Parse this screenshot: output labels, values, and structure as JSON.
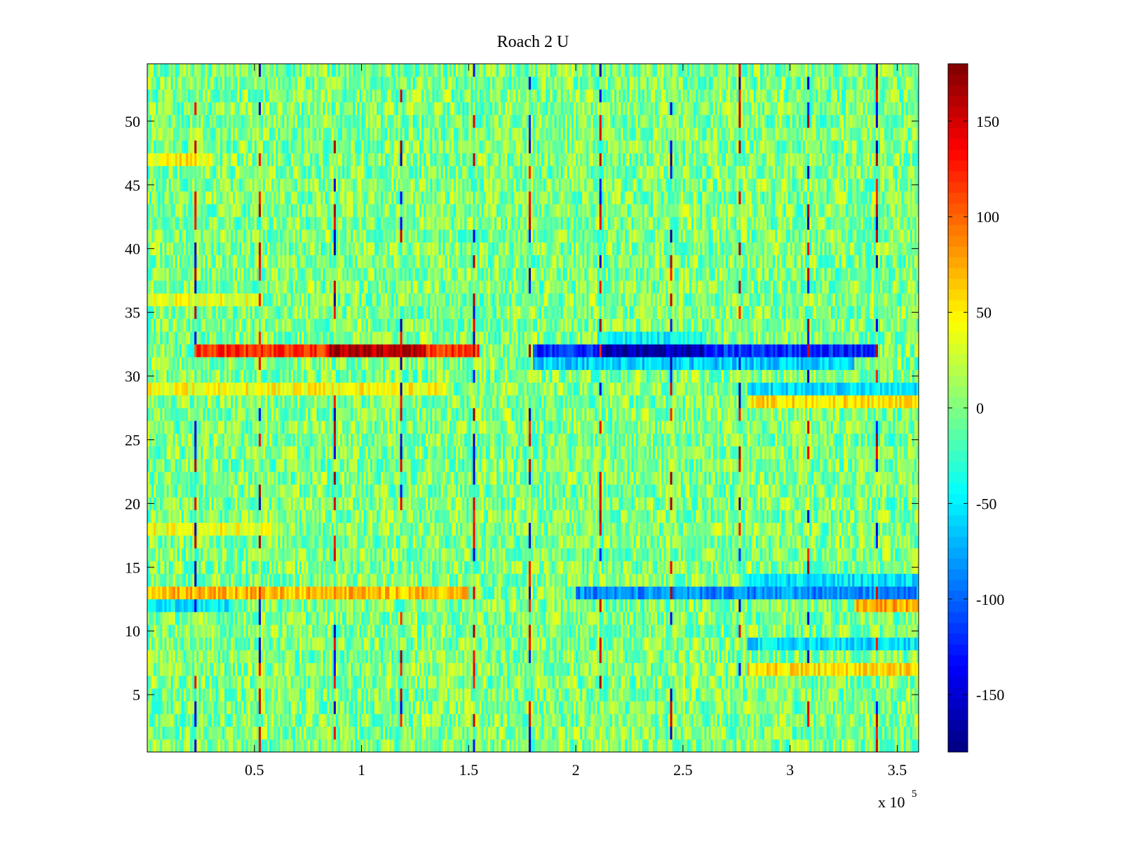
{
  "chart_data": {
    "type": "heatmap",
    "title": "Roach 2 U",
    "xlabel": "",
    "ylabel": "",
    "x_exponent_label": "x 10",
    "x_exponent_power": "5",
    "xlim": [
      0,
      3.6
    ],
    "ylim": [
      0.5,
      54.5
    ],
    "n_channels": 54,
    "x_ticks": [
      {
        "value": 0.5,
        "label": "0.5"
      },
      {
        "value": 1,
        "label": "1"
      },
      {
        "value": 1.5,
        "label": "1.5"
      },
      {
        "value": 2,
        "label": "2"
      },
      {
        "value": 2.5,
        "label": "2.5"
      },
      {
        "value": 3,
        "label": "3"
      },
      {
        "value": 3.5,
        "label": "3.5"
      }
    ],
    "y_ticks": [
      {
        "value": 5,
        "label": "5"
      },
      {
        "value": 10,
        "label": "10"
      },
      {
        "value": 15,
        "label": "15"
      },
      {
        "value": 20,
        "label": "20"
      },
      {
        "value": 25,
        "label": "25"
      },
      {
        "value": 30,
        "label": "30"
      },
      {
        "value": 35,
        "label": "35"
      },
      {
        "value": 40,
        "label": "40"
      },
      {
        "value": 45,
        "label": "45"
      },
      {
        "value": 50,
        "label": "50"
      }
    ],
    "colorbar": {
      "colormap": "jet",
      "range": [
        -180,
        180
      ],
      "ticks": [
        {
          "value": 150,
          "label": "150"
        },
        {
          "value": 100,
          "label": "100"
        },
        {
          "value": 50,
          "label": "50"
        },
        {
          "value": 0,
          "label": "0"
        },
        {
          "value": -50,
          "label": "-50"
        },
        {
          "value": -100,
          "label": "-100"
        },
        {
          "value": -150,
          "label": "-150"
        }
      ]
    },
    "background_value_range": [
      -40,
      40
    ],
    "feature_bands": [
      {
        "channel": 32,
        "x_range": [
          0.22,
          1.55
        ],
        "value": 120
      },
      {
        "channel": 32,
        "x_range": [
          0.85,
          1.3
        ],
        "value": 165
      },
      {
        "channel": 32,
        "x_range": [
          1.8,
          3.4
        ],
        "value": -120
      },
      {
        "channel": 32,
        "x_range": [
          2.1,
          2.6
        ],
        "value": -160
      },
      {
        "channel": 31,
        "x_range": [
          1.8,
          3.3
        ],
        "value": -60
      },
      {
        "channel": 33,
        "x_range": [
          2.1,
          2.6
        ],
        "value": -45
      },
      {
        "channel": 29,
        "x_range": [
          0.0,
          1.4
        ],
        "value": 45
      },
      {
        "channel": 29,
        "x_range": [
          2.8,
          3.6
        ],
        "value": -55
      },
      {
        "channel": 28,
        "x_range": [
          2.8,
          3.6
        ],
        "value": 55
      },
      {
        "channel": 13,
        "x_range": [
          0.0,
          1.5
        ],
        "value": 70
      },
      {
        "channel": 13,
        "x_range": [
          2.0,
          3.6
        ],
        "value": -85
      },
      {
        "channel": 14,
        "x_range": [
          2.8,
          3.6
        ],
        "value": -55
      },
      {
        "channel": 12,
        "x_range": [
          3.3,
          3.6
        ],
        "value": 75
      },
      {
        "channel": 12,
        "x_range": [
          0.0,
          0.4
        ],
        "value": -50
      },
      {
        "channel": 9,
        "x_range": [
          2.8,
          3.6
        ],
        "value": -55
      },
      {
        "channel": 7,
        "x_range": [
          2.8,
          3.6
        ],
        "value": 55
      },
      {
        "channel": 18,
        "x_range": [
          0.0,
          0.6
        ],
        "value": 40
      },
      {
        "channel": 47,
        "x_range": [
          0.0,
          0.3
        ],
        "value": 50
      },
      {
        "channel": 36,
        "x_range": [
          0.0,
          0.5
        ],
        "value": 35
      }
    ],
    "vertical_spike_x": [
      0.22,
      0.52,
      0.87,
      1.18,
      1.52,
      1.78,
      2.11,
      2.44,
      2.76,
      3.08,
      3.4
    ]
  }
}
